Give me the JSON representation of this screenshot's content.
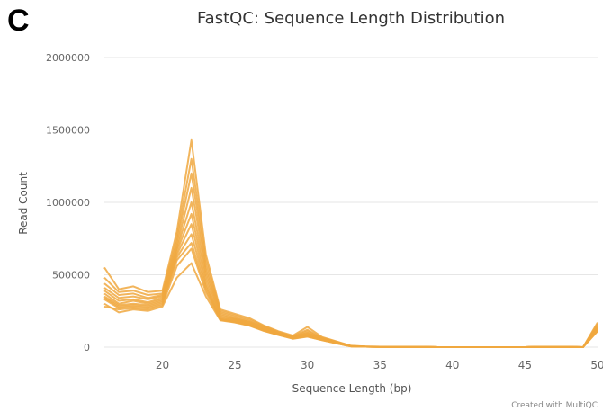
{
  "panel_label": "C",
  "chart_data": {
    "type": "line",
    "title": "FastQC: Sequence Length Distribution",
    "xlabel": "Sequence Length (bp)",
    "ylabel": "Read Count",
    "xlim": [
      16,
      50
    ],
    "ylim": [
      0,
      2000000
    ],
    "x_ticks": [
      20,
      25,
      30,
      35,
      40,
      45,
      50
    ],
    "y_ticks": [
      0,
      500000,
      1000000,
      1500000,
      2000000
    ],
    "grid": "horizontal",
    "legend": "none",
    "color": "#F0A840",
    "credit": "Created with MultiQC",
    "x": [
      16,
      17,
      18,
      19,
      20,
      21,
      22,
      23,
      24,
      25,
      26,
      27,
      28,
      29,
      30,
      31,
      32,
      33,
      34,
      35,
      36,
      37,
      38,
      39,
      40,
      41,
      42,
      43,
      44,
      45,
      46,
      47,
      48,
      49,
      50
    ],
    "series": [
      {
        "values": [
          550000,
          400000,
          420000,
          380000,
          390000,
          800000,
          1430000,
          640000,
          260000,
          230000,
          200000,
          150000,
          110000,
          80000,
          140000,
          70000,
          40000,
          10000,
          5000,
          3000,
          2000,
          1000,
          1000,
          0,
          0,
          0,
          0,
          0,
          0,
          0,
          3000,
          3000,
          2000,
          0,
          170000
        ]
      },
      {
        "values": [
          480000,
          380000,
          390000,
          360000,
          370000,
          760000,
          1300000,
          600000,
          250000,
          220000,
          190000,
          145000,
          105000,
          75000,
          120000,
          65000,
          38000,
          9000,
          5000,
          3000,
          2000,
          1000,
          1000,
          0,
          0,
          0,
          0,
          0,
          0,
          0,
          3000,
          3000,
          2000,
          0,
          160000
        ]
      },
      {
        "values": [
          440000,
          360000,
          370000,
          340000,
          360000,
          730000,
          1200000,
          560000,
          240000,
          210000,
          180000,
          140000,
          100000,
          72000,
          110000,
          62000,
          35000,
          8000,
          4000,
          3000,
          2000,
          1000,
          1000,
          0,
          0,
          0,
          0,
          0,
          0,
          0,
          2000,
          2000,
          2000,
          0,
          150000
        ]
      },
      {
        "values": [
          410000,
          340000,
          350000,
          330000,
          350000,
          700000,
          1100000,
          530000,
          230000,
          200000,
          175000,
          135000,
          97000,
          70000,
          100000,
          60000,
          33000,
          8000,
          4000,
          3000,
          2000,
          1000,
          1000,
          0,
          0,
          0,
          0,
          0,
          0,
          0,
          2000,
          2000,
          2000,
          0,
          140000
        ]
      },
      {
        "values": [
          390000,
          320000,
          330000,
          310000,
          340000,
          680000,
          1000000,
          500000,
          220000,
          195000,
          170000,
          130000,
          95000,
          68000,
          95000,
          58000,
          32000,
          7000,
          4000,
          2000,
          2000,
          1000,
          1000,
          0,
          0,
          0,
          0,
          0,
          0,
          0,
          2000,
          2000,
          1000,
          0,
          135000
        ]
      },
      {
        "values": [
          370000,
          300000,
          320000,
          300000,
          330000,
          660000,
          920000,
          470000,
          210000,
          190000,
          165000,
          125000,
          92000,
          66000,
          90000,
          56000,
          30000,
          7000,
          3000,
          2000,
          1000,
          1000,
          1000,
          0,
          0,
          0,
          0,
          0,
          0,
          0,
          2000,
          2000,
          1000,
          0,
          130000
        ]
      },
      {
        "values": [
          350000,
          290000,
          300000,
          290000,
          320000,
          640000,
          850000,
          440000,
          200000,
          185000,
          160000,
          120000,
          90000,
          64000,
          85000,
          54000,
          29000,
          6000,
          3000,
          2000,
          1000,
          1000,
          1000,
          0,
          0,
          0,
          0,
          0,
          0,
          0,
          2000,
          2000,
          1000,
          0,
          125000
        ]
      },
      {
        "values": [
          340000,
          280000,
          290000,
          280000,
          310000,
          620000,
          780000,
          420000,
          195000,
          180000,
          155000,
          118000,
          88000,
          62000,
          80000,
          52000,
          28000,
          6000,
          3000,
          2000,
          1000,
          1000,
          1000,
          0,
          0,
          0,
          0,
          0,
          0,
          0,
          2000,
          2000,
          1000,
          0,
          120000
        ]
      },
      {
        "values": [
          330000,
          270000,
          280000,
          270000,
          300000,
          600000,
          720000,
          400000,
          190000,
          175000,
          150000,
          115000,
          86000,
          60000,
          75000,
          50000,
          27000,
          5000,
          3000,
          2000,
          1000,
          1000,
          1000,
          0,
          0,
          0,
          0,
          0,
          0,
          0,
          2000,
          2000,
          1000,
          0,
          115000
        ]
      },
      {
        "values": [
          300000,
          240000,
          260000,
          250000,
          280000,
          480000,
          580000,
          350000,
          185000,
          170000,
          148000,
          112000,
          84000,
          58000,
          72000,
          48000,
          26000,
          5000,
          3000,
          2000,
          1000,
          1000,
          1000,
          0,
          0,
          0,
          0,
          0,
          0,
          0,
          2000,
          2000,
          1000,
          0,
          110000
        ]
      },
      {
        "values": [
          280000,
          260000,
          270000,
          260000,
          290000,
          560000,
          680000,
          380000,
          188000,
          172000,
          152000,
          113000,
          85000,
          59000,
          74000,
          49000,
          26000,
          5000,
          3000,
          2000,
          1000,
          1000,
          1000,
          0,
          0,
          0,
          0,
          0,
          0,
          0,
          2000,
          2000,
          1000,
          0,
          112000
        ]
      }
    ]
  }
}
